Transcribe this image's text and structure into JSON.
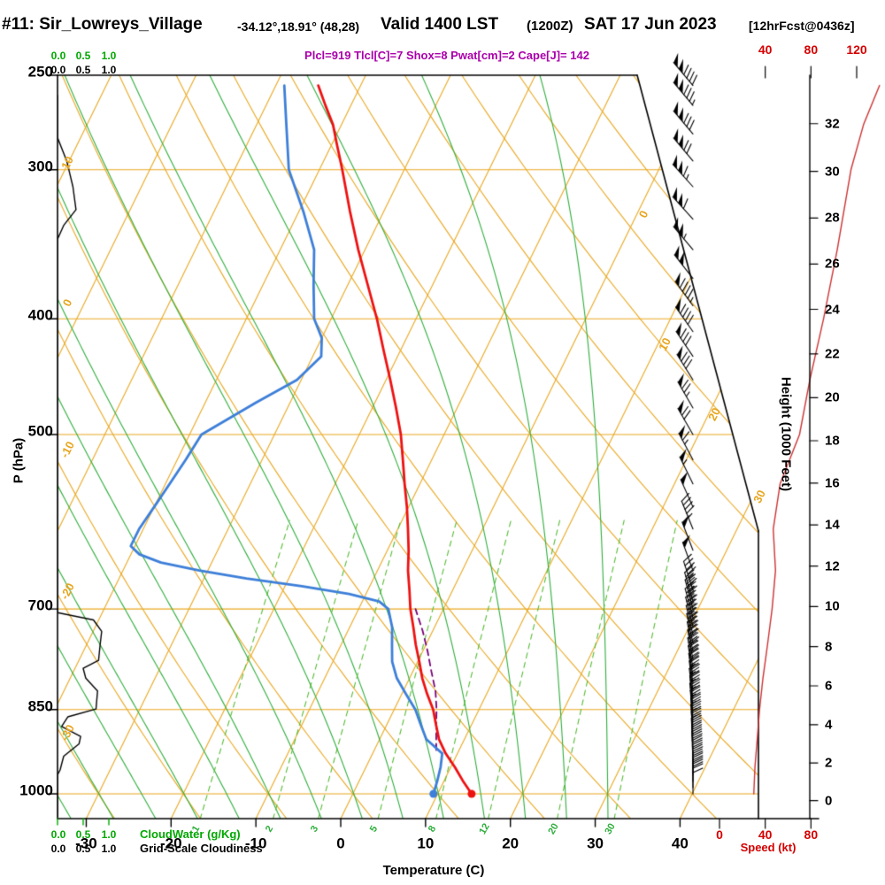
{
  "header": {
    "station": "#11: Sir_Lowreys_Village",
    "coords": "-34.12°,18.91° (48,28)",
    "valid": "Valid 1400 LST",
    "zulu": "(1200Z)",
    "date": "SAT 17 Jun 2023",
    "fcst": "[12hrFcst@0436z]",
    "annotation": "Plcl=919 Tlcl[C]=7 Shox=8 Pwat[cm]=2 Cape[J]= 142"
  },
  "axes": {
    "pressure_label": "P (hPa)",
    "pressure_ticks": [
      250,
      300,
      400,
      500,
      700,
      850,
      1000
    ],
    "temp_label": "Temperature (C)",
    "temp_ticks": [
      -30,
      -20,
      -10,
      0,
      10,
      20,
      30,
      40
    ],
    "height_label": "Height (1000 Feet)",
    "height_ticks": [
      0,
      2,
      4,
      6,
      8,
      10,
      12,
      14,
      16,
      18,
      20,
      22,
      24,
      26,
      28,
      30,
      32
    ],
    "speed_label": "Speed (kt)",
    "speed_ticks_top": [
      40,
      80,
      120
    ],
    "speed_ticks_bottom": [
      0,
      40,
      80
    ]
  },
  "scales": {
    "ticks": [
      "0.0",
      "0.5",
      "1.0"
    ],
    "cloudwater_label": "CloudWater (g/Kg)",
    "gridscale_label": "Grid-Scale Cloudiness"
  },
  "chart_data": {
    "type": "skewt_log_p",
    "title": "#11: Sir_Lowreys_Village Valid 1400 LST (1200Z) SAT 17 Jun 2023",
    "pressure_range_hpa": [
      250,
      1050
    ],
    "isobars": [
      300,
      400,
      500,
      700,
      850,
      1000
    ],
    "isotherms": {
      "min": -90,
      "max": 40,
      "step": 10
    },
    "dry_adiabats": {
      "min": -40,
      "max": 150,
      "step": 10
    },
    "moist_adiabats": [
      -40,
      -35,
      -30,
      -25,
      -20,
      -15,
      -10,
      -5,
      0,
      5,
      10,
      15,
      20,
      25,
      30
    ],
    "mixing_ratio_lines": [
      1,
      2,
      3,
      5,
      8,
      12,
      20,
      30
    ],
    "isotherm_edge_labels": [
      {
        "t": 0,
        "p": 327
      },
      {
        "t": 10,
        "p": 420
      },
      {
        "t": 20,
        "p": 481
      },
      {
        "t": 30,
        "p": 563
      }
    ],
    "adiabat_edge_labels": [
      {
        "t": 10,
        "p": 296
      },
      {
        "t": 0,
        "p": 388
      },
      {
        "t": -10,
        "p": 515
      },
      {
        "t": -20,
        "p": 676
      },
      {
        "t": -30,
        "p": 889
      }
    ],
    "temperature_profile": [
      [
        1000,
        14
      ],
      [
        975,
        12.2
      ],
      [
        950,
        10.5
      ],
      [
        925,
        8.6
      ],
      [
        900,
        7
      ],
      [
        875,
        5.8
      ],
      [
        850,
        4.6
      ],
      [
        825,
        3
      ],
      [
        800,
        1.5
      ],
      [
        775,
        0.2
      ],
      [
        750,
        -1.2
      ],
      [
        725,
        -2.5
      ],
      [
        700,
        -3.9
      ],
      [
        675,
        -5.1
      ],
      [
        650,
        -6.4
      ],
      [
        625,
        -7.5
      ],
      [
        600,
        -8.8
      ],
      [
        575,
        -10.2
      ],
      [
        550,
        -11.8
      ],
      [
        525,
        -13.4
      ],
      [
        500,
        -15.1
      ],
      [
        475,
        -17.2
      ],
      [
        450,
        -19.5
      ],
      [
        425,
        -22
      ],
      [
        400,
        -24.6
      ],
      [
        375,
        -27.6
      ],
      [
        350,
        -30.8
      ],
      [
        325,
        -34
      ],
      [
        300,
        -37.3
      ],
      [
        285,
        -39.5
      ],
      [
        275,
        -41
      ],
      [
        265,
        -43
      ],
      [
        255,
        -45
      ]
    ],
    "dewpoint_profile": [
      [
        1000,
        9.5
      ],
      [
        975,
        9.2
      ],
      [
        950,
        8.8
      ],
      [
        925,
        8.2
      ],
      [
        900,
        5.5
      ],
      [
        875,
        4
      ],
      [
        850,
        2.5
      ],
      [
        825,
        0.5
      ],
      [
        800,
        -1.5
      ],
      [
        775,
        -3
      ],
      [
        750,
        -4
      ],
      [
        725,
        -5
      ],
      [
        700,
        -6.5
      ],
      [
        690,
        -8
      ],
      [
        680,
        -12
      ],
      [
        670,
        -18
      ],
      [
        660,
        -25
      ],
      [
        650,
        -31
      ],
      [
        640,
        -36
      ],
      [
        630,
        -39
      ],
      [
        620,
        -40.5
      ],
      [
        600,
        -40.5
      ],
      [
        575,
        -40
      ],
      [
        550,
        -39.5
      ],
      [
        525,
        -39
      ],
      [
        500,
        -38.6
      ],
      [
        470,
        -34
      ],
      [
        450,
        -30.5
      ],
      [
        430,
        -29
      ],
      [
        415,
        -30
      ],
      [
        400,
        -32
      ],
      [
        375,
        -34
      ],
      [
        350,
        -36
      ],
      [
        325,
        -39.5
      ],
      [
        300,
        -43.6
      ],
      [
        275,
        -46.5
      ],
      [
        255,
        -49
      ]
    ],
    "parcel_profile": [
      [
        919,
        7.3
      ],
      [
        880,
        6
      ],
      [
        850,
        5
      ],
      [
        820,
        3.8
      ],
      [
        790,
        2.2
      ],
      [
        760,
        0.6
      ],
      [
        730,
        -1.2
      ],
      [
        700,
        -3.3
      ]
    ],
    "cloud_water_profile": [
      [
        260,
        0
      ],
      [
        282,
        0
      ],
      [
        295,
        0.18
      ],
      [
        310,
        0.3
      ],
      [
        324,
        0.36
      ],
      [
        334,
        0.12
      ],
      [
        343,
        0
      ],
      [
        705,
        0
      ],
      [
        715,
        0.7
      ],
      [
        731,
        0.86
      ],
      [
        750,
        0.83
      ],
      [
        773,
        0.8
      ],
      [
        785,
        0.5
      ],
      [
        800,
        0.55
      ],
      [
        820,
        0.78
      ],
      [
        849,
        0.75
      ],
      [
        862,
        0.2
      ],
      [
        878,
        0.08
      ],
      [
        895,
        0.45
      ],
      [
        908,
        0.42
      ],
      [
        930,
        0.12
      ],
      [
        955,
        0.05
      ],
      [
        964,
        0
      ],
      [
        1045,
        0
      ]
    ],
    "wind_speed_profile": [
      [
        1000,
        30
      ],
      [
        950,
        31
      ],
      [
        900,
        33
      ],
      [
        850,
        35
      ],
      [
        800,
        38
      ],
      [
        750,
        42
      ],
      [
        700,
        46
      ],
      [
        650,
        49
      ],
      [
        600,
        47
      ],
      [
        550,
        53
      ],
      [
        500,
        70
      ],
      [
        450,
        79
      ],
      [
        400,
        91
      ],
      [
        350,
        103
      ],
      [
        300,
        115
      ],
      [
        275,
        126
      ],
      [
        255,
        140
      ]
    ],
    "wind_barbs": [
      [
        255,
        320,
        140
      ],
      [
        265,
        320,
        135
      ],
      [
        280,
        320,
        130
      ],
      [
        295,
        320,
        120
      ],
      [
        310,
        318,
        115
      ],
      [
        330,
        318,
        110
      ],
      [
        350,
        320,
        105
      ],
      [
        370,
        322,
        100
      ],
      [
        390,
        324,
        95
      ],
      [
        410,
        325,
        88
      ],
      [
        430,
        326,
        82
      ],
      [
        450,
        328,
        78
      ],
      [
        475,
        330,
        73
      ],
      [
        500,
        330,
        70
      ],
      [
        525,
        332,
        63
      ],
      [
        550,
        334,
        56
      ],
      [
        575,
        336,
        51
      ],
      [
        600,
        338,
        47
      ],
      [
        625,
        339,
        48
      ],
      [
        650,
        340,
        49
      ],
      [
        675,
        342,
        47
      ],
      [
        690,
        344,
        46
      ],
      [
        700,
        345,
        46
      ],
      [
        712,
        345,
        45
      ],
      [
        724,
        346,
        44
      ],
      [
        736,
        347,
        43
      ],
      [
        748,
        348,
        42
      ],
      [
        760,
        349,
        41
      ],
      [
        772,
        350,
        40
      ],
      [
        784,
        350,
        39
      ],
      [
        796,
        351,
        38
      ],
      [
        808,
        352,
        37
      ],
      [
        820,
        353,
        36
      ],
      [
        832,
        353,
        36
      ],
      [
        844,
        354,
        35
      ],
      [
        856,
        354,
        35
      ],
      [
        868,
        355,
        34
      ],
      [
        880,
        356,
        33
      ],
      [
        892,
        356,
        33
      ],
      [
        904,
        357,
        32
      ],
      [
        916,
        357,
        32
      ],
      [
        928,
        358,
        31
      ],
      [
        940,
        358,
        31
      ],
      [
        952,
        359,
        31
      ],
      [
        964,
        359,
        30
      ],
      [
        976,
        360,
        30
      ],
      [
        988,
        360,
        30
      ],
      [
        1000,
        360,
        30
      ]
    ],
    "colors": {
      "isotherm_orange": "#eaa821",
      "moist_green": "#2fae3c",
      "mixing_green": "#55bb33",
      "temperature_red": "#ee1111",
      "dewpoint_blue": "#3d7fd9",
      "parcel_purple": "#770077",
      "speed_red": "#cc3333",
      "cloud_black": "#000000",
      "annotation_purple": "#aa00aa",
      "scale_green": "#00a800"
    }
  }
}
